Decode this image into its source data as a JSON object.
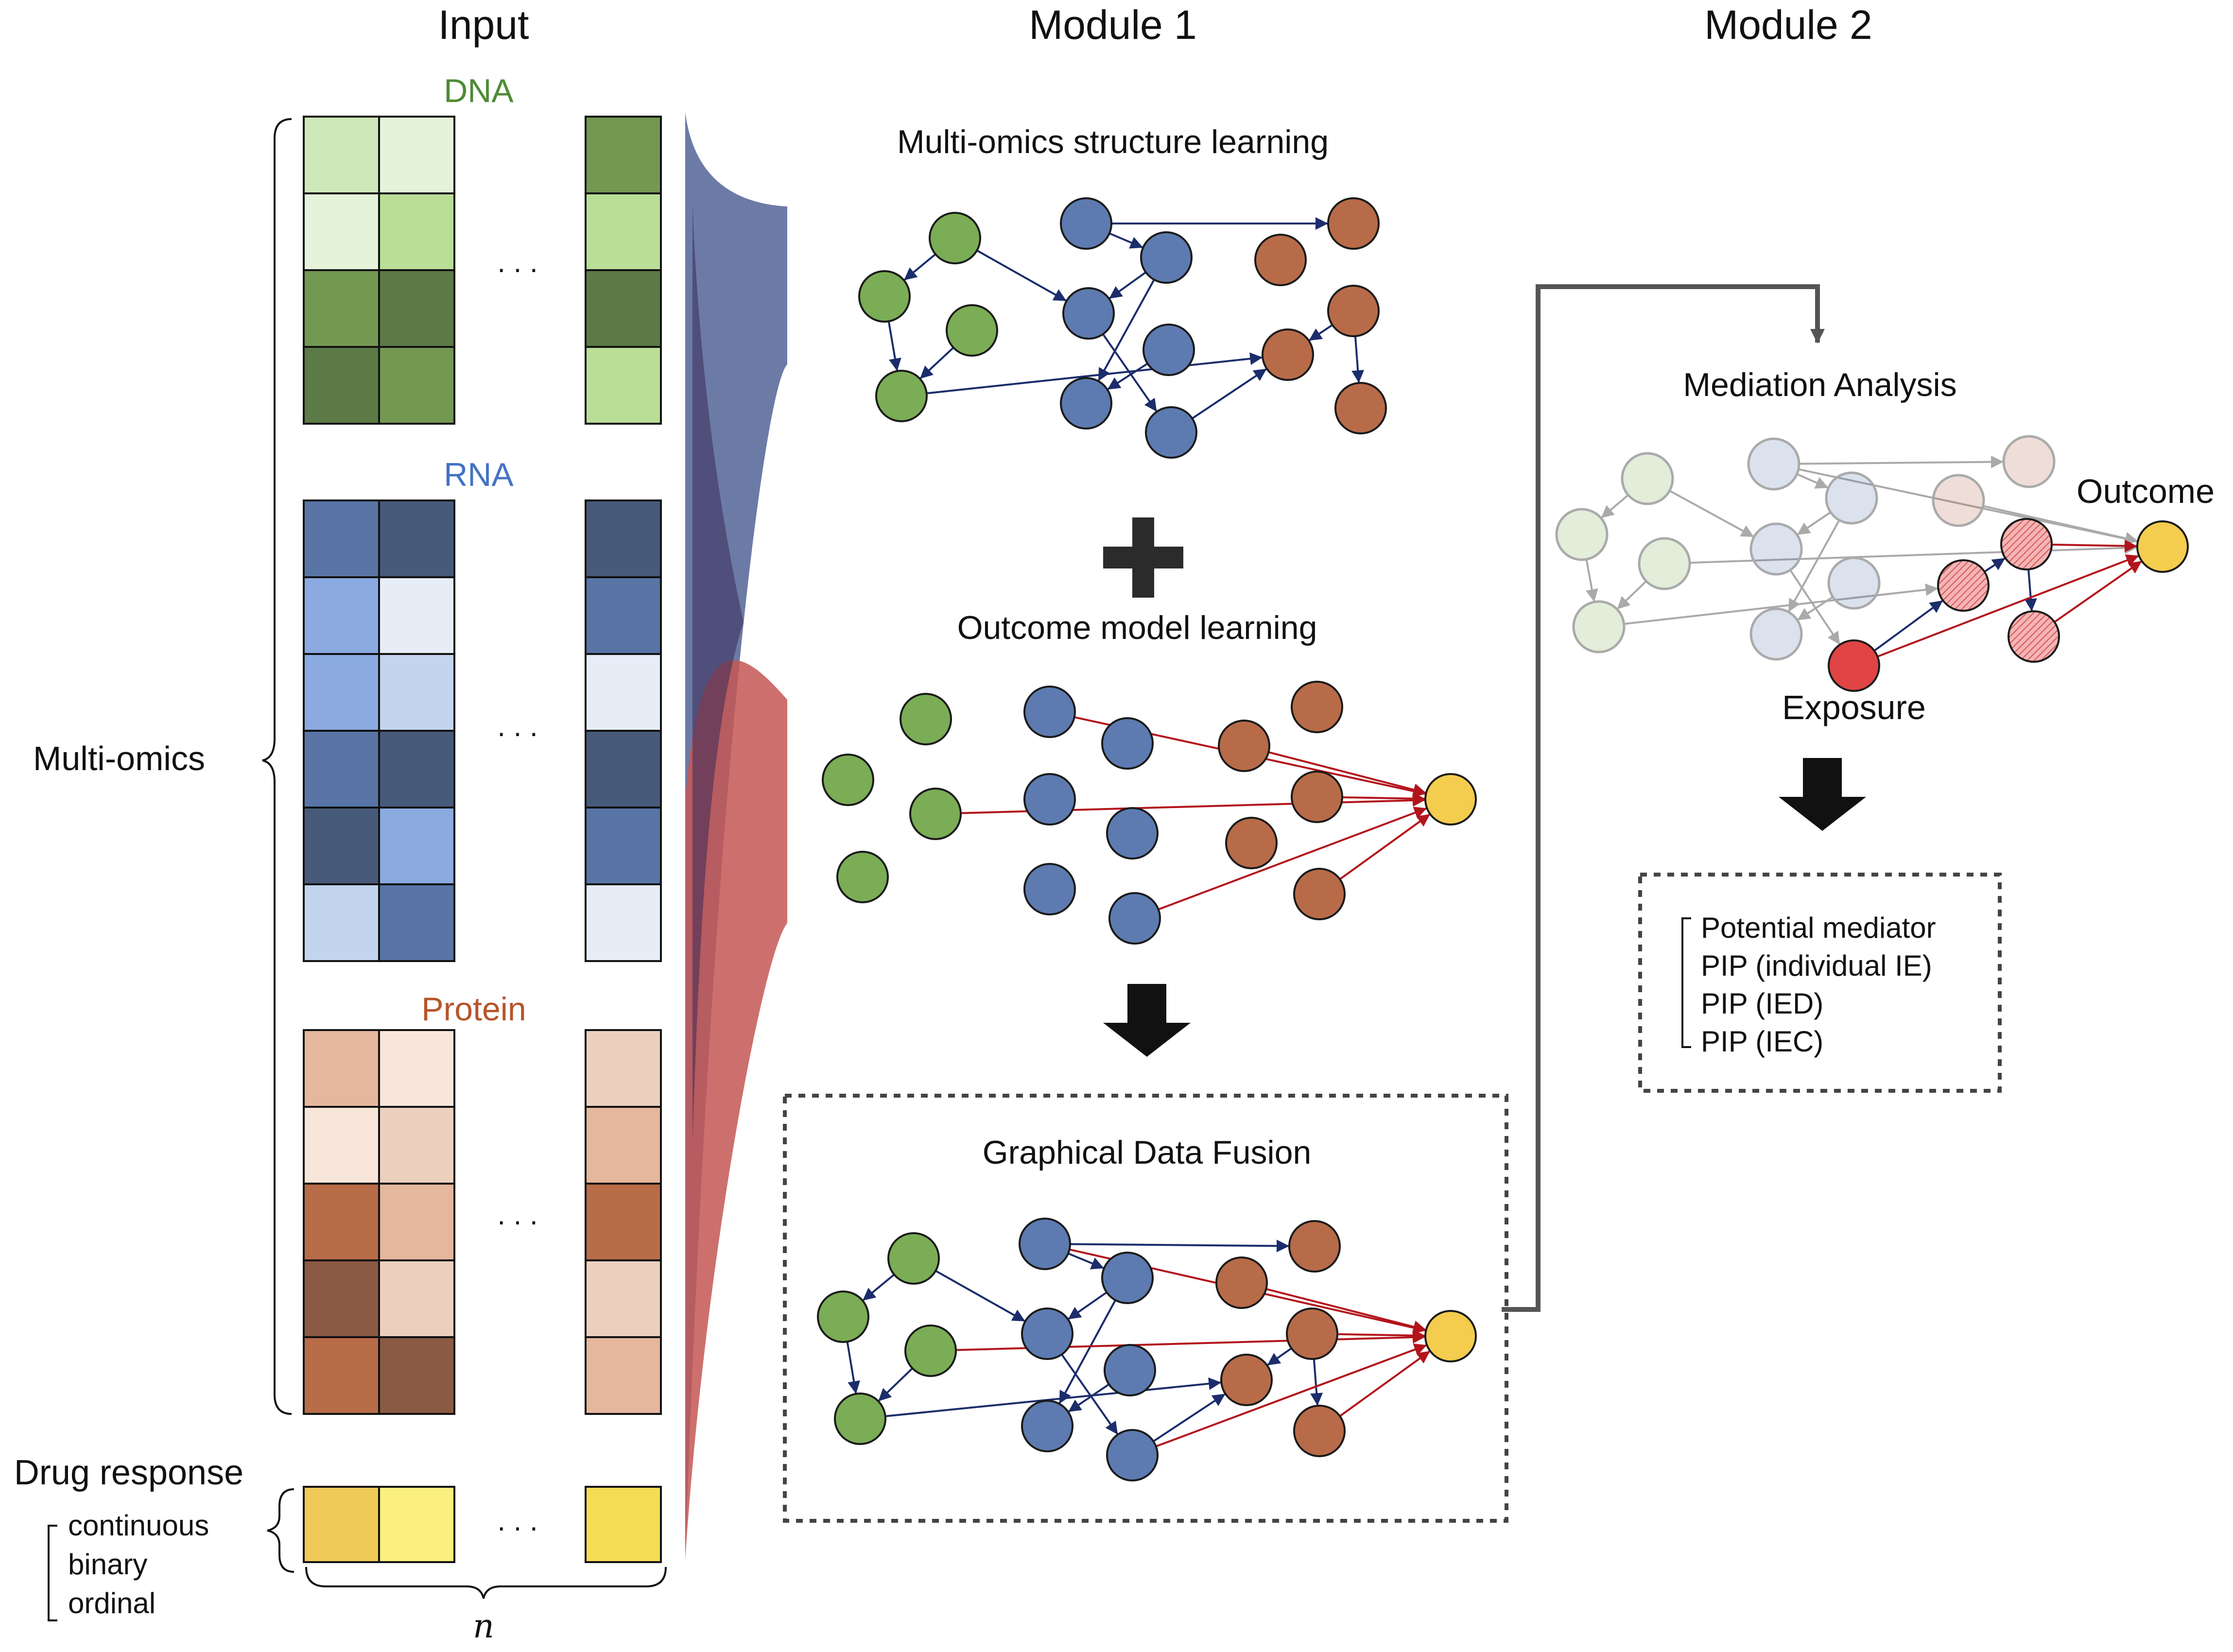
{
  "headers": {
    "input": "Input",
    "module1": "Module 1",
    "module2": "Module 2"
  },
  "input": {
    "multi_omics_label": "Multi-omics",
    "dna_label": "DNA",
    "rna_label": "RNA",
    "protein_label": "Protein",
    "drug_label": "Drug response",
    "drug_types": [
      "continuous",
      "binary",
      "ordinal"
    ],
    "n_label": "n",
    "ellipsis": ". . .",
    "dna_cells": [
      [
        "#cfe8b9",
        "#e6f3db",
        "#739852"
      ],
      [
        "#e6f3db",
        "#b9de96",
        "#b9de96"
      ],
      [
        "#739852",
        "#5c7a46",
        "#5c7a46"
      ],
      [
        "#5c7a46",
        "#739852",
        "#b9de96"
      ]
    ],
    "rna_cells": [
      [
        "#5875a6",
        "#485a7a",
        "#485a7a"
      ],
      [
        "#8aaae0",
        "#e6edf7",
        "#5875a6"
      ],
      [
        "#8aaae0",
        "#c2d4ee",
        "#e6edf7"
      ],
      [
        "#5875a6",
        "#485a7a",
        "#485a7a"
      ],
      [
        "#485a7a",
        "#8aaae0",
        "#5875a6"
      ],
      [
        "#c2d4ee",
        "#5875a6",
        "#e6edf7"
      ]
    ],
    "protein_cells": [
      [
        "#e5b79d",
        "#f8e6da",
        "#ecd0be"
      ],
      [
        "#f8e6da",
        "#ecd0be",
        "#e5b79d"
      ],
      [
        "#b86c48",
        "#e5b79d",
        "#b86c48"
      ],
      [
        "#8a5a42",
        "#ecd0be",
        "#ecd0be"
      ],
      [
        "#b86c48",
        "#8a5a42",
        "#e5b79d"
      ]
    ],
    "drug_cells": [
      "#f0ca58",
      "#fbef80",
      "#f5dc55"
    ]
  },
  "module1": {
    "structure_title": "Multi-omics structure learning",
    "outcome_title": "Outcome model learning",
    "fusion_title": "Graphical Data Fusion"
  },
  "module2": {
    "mediation_title": "Mediation Analysis",
    "outcome_label": "Outcome",
    "exposure_label": "Exposure",
    "results": [
      "Potential mediator",
      "PIP (individual IE)",
      "PIP (IED)",
      "PIP (IEC)"
    ]
  },
  "colors": {
    "dna": "#7aad55",
    "rna": "#5d7bb0",
    "protein": "#b86b48",
    "outcome": "#f4cc4e",
    "exposure": "#e04444",
    "mediator": "#f5b5b5",
    "edge_blue": "#1b2d6b",
    "edge_red": "#b3141b",
    "edge_gray": "#aaaaaa",
    "dna_title": "#4e8a35",
    "rna_title": "#4472c4",
    "protein_title": "#b5552a",
    "ribbon_blue": "#4c5e92",
    "ribbon_red": "#c45754",
    "ribbon_dark": "#3b2a55"
  }
}
